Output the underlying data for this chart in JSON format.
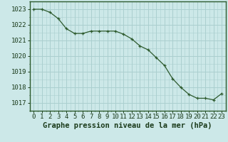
{
  "x": [
    0,
    1,
    2,
    3,
    4,
    5,
    6,
    7,
    8,
    9,
    10,
    11,
    12,
    13,
    14,
    15,
    16,
    17,
    18,
    19,
    20,
    21,
    22,
    23
  ],
  "y": [
    1023.0,
    1023.0,
    1022.8,
    1022.4,
    1021.75,
    1021.45,
    1021.45,
    1021.6,
    1021.6,
    1021.6,
    1021.6,
    1021.4,
    1021.1,
    1020.65,
    1020.4,
    1019.9,
    1019.4,
    1018.55,
    1018.0,
    1017.55,
    1017.3,
    1017.3,
    1017.2,
    1017.6
  ],
  "bg_color": "#cce8e8",
  "grid_color": "#aacfcf",
  "line_color": "#2d5a2d",
  "marker_color": "#2d5a2d",
  "xlabel": "Graphe pression niveau de la mer (hPa)",
  "xlabel_color": "#1a3a1a",
  "tick_color": "#1a3a1a",
  "axis_color": "#1a3a1a",
  "ylim": [
    1016.5,
    1023.5
  ],
  "xlim": [
    -0.5,
    23.5
  ],
  "yticks": [
    1017,
    1018,
    1019,
    1020,
    1021,
    1022,
    1023
  ],
  "xticks": [
    0,
    1,
    2,
    3,
    4,
    5,
    6,
    7,
    8,
    9,
    10,
    11,
    12,
    13,
    14,
    15,
    16,
    17,
    18,
    19,
    20,
    21,
    22,
    23
  ],
  "xtick_labels": [
    "0",
    "1",
    "2",
    "3",
    "4",
    "5",
    "6",
    "7",
    "8",
    "9",
    "10",
    "11",
    "12",
    "13",
    "14",
    "15",
    "16",
    "17",
    "18",
    "19",
    "20",
    "21",
    "22",
    "23"
  ],
  "border_color": "#2d5a2d",
  "font_size": 6.5,
  "xlabel_font_size": 7.5
}
